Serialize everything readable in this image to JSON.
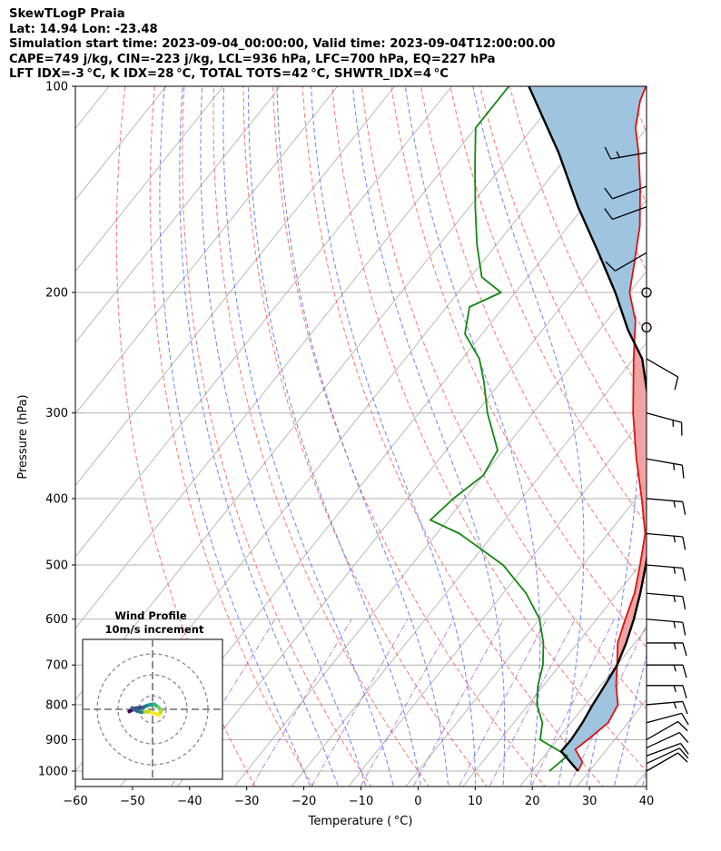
{
  "header": {
    "title": "SkewTLogP Praia",
    "location": "Lat: 14.94   Lon: -23.48",
    "times": "Simulation start time: 2023-09-04_00:00:00, Valid time: 2023-09-04T12:00:00.00",
    "params": "CAPE=749 j/kg, CIN=-223 j/kg, LCL=936 hPa, LFC=700 hPa, EQ=227 hPa",
    "indices": "LFT IDX=-3 °C, K IDX=28 °C, TOTAL TOTS=42 °C, SHWTR_IDX=4 °C"
  },
  "chart_data": {
    "type": "line",
    "subtype": "skew-t log-p",
    "xlabel": "Temperature ( °C)",
    "ylabel": "Pressure (hPa)",
    "xlim": [
      -60,
      40
    ],
    "ylim": [
      1050,
      100
    ],
    "x_ticks": [
      -60,
      -50,
      -40,
      -30,
      -20,
      -10,
      0,
      10,
      20,
      30,
      40
    ],
    "x_tick_labels": [
      "−60",
      "−50",
      "−40",
      "−30",
      "−20",
      "−10",
      "0",
      "10",
      "20",
      "30",
      "40"
    ],
    "y_ticks": [
      1000,
      900,
      800,
      700,
      600,
      500,
      400,
      300,
      200,
      100
    ],
    "y_tick_labels": [
      "1000",
      "900",
      "800",
      "700",
      "600",
      "500",
      "400",
      "300",
      "200",
      "100"
    ],
    "series": [
      {
        "name": "Temperature",
        "color": "#e01010",
        "points": [
          [
            1000,
            28
          ],
          [
            970,
            27.5
          ],
          [
            930,
            24.5
          ],
          [
            900,
            25.3
          ],
          [
            850,
            26.5
          ],
          [
            800,
            25.7
          ],
          [
            750,
            22.7
          ],
          [
            700,
            20
          ],
          [
            650,
            17
          ],
          [
            600,
            15
          ],
          [
            550,
            13
          ],
          [
            500,
            10
          ],
          [
            450,
            6.5
          ],
          [
            400,
            1
          ],
          [
            350,
            -5.5
          ],
          [
            300,
            -12.5
          ],
          [
            250,
            -20
          ],
          [
            220,
            -25
          ],
          [
            200,
            -30
          ],
          [
            180,
            -33.5
          ],
          [
            160,
            -37.5
          ],
          [
            140,
            -43
          ],
          [
            125,
            -48
          ],
          [
            115,
            -52
          ],
          [
            105,
            -55
          ],
          [
            100,
            -56
          ]
        ]
      },
      {
        "name": "Dewpoint",
        "color": "#118811",
        "points": [
          [
            1000,
            23
          ],
          [
            950,
            24
          ],
          [
            900,
            17
          ],
          [
            850,
            15
          ],
          [
            800,
            11.5
          ],
          [
            750,
            9
          ],
          [
            700,
            7
          ],
          [
            650,
            4
          ],
          [
            600,
            0
          ],
          [
            550,
            -6
          ],
          [
            500,
            -14
          ],
          [
            450,
            -26
          ],
          [
            430,
            -33
          ],
          [
            400,
            -32
          ],
          [
            370,
            -30
          ],
          [
            340,
            -31
          ],
          [
            300,
            -38
          ],
          [
            270,
            -43
          ],
          [
            250,
            -47
          ],
          [
            230,
            -53
          ],
          [
            210,
            -56
          ],
          [
            200,
            -52.5
          ],
          [
            190,
            -58
          ],
          [
            170,
            -63.5
          ],
          [
            150,
            -69
          ],
          [
            130,
            -75
          ],
          [
            115,
            -80
          ],
          [
            100,
            -80
          ]
        ]
      },
      {
        "name": "Parcel",
        "color": "#000000",
        "points": [
          [
            1000,
            28
          ],
          [
            960,
            24.5
          ],
          [
            936,
            22.3
          ],
          [
            900,
            22.4
          ],
          [
            850,
            22
          ],
          [
            800,
            21.3
          ],
          [
            750,
            20.7
          ],
          [
            700,
            20
          ],
          [
            650,
            18.5
          ],
          [
            600,
            16.5
          ],
          [
            550,
            14
          ],
          [
            500,
            11
          ],
          [
            450,
            7.5
          ],
          [
            400,
            3
          ],
          [
            350,
            -2.5
          ],
          [
            300,
            -9.5
          ],
          [
            250,
            -18.5
          ],
          [
            227,
            -25
          ],
          [
            200,
            -32.5
          ],
          [
            175,
            -41
          ],
          [
            150,
            -51
          ],
          [
            125,
            -62
          ],
          [
            100,
            -76.5
          ]
        ]
      }
    ],
    "cape_color": "#f0a3a3",
    "cin_color": "#9ec4e0",
    "winds": [
      {
        "p": 1000,
        "dir": 60,
        "spd": 10
      },
      {
        "p": 975,
        "dir": 65,
        "spd": 10
      },
      {
        "p": 950,
        "dir": 70,
        "spd": 10
      },
      {
        "p": 925,
        "dir": 65,
        "spd": 10
      },
      {
        "p": 900,
        "dir": 60,
        "spd": 10
      },
      {
        "p": 850,
        "dir": 75,
        "spd": 10
      },
      {
        "p": 800,
        "dir": 85,
        "spd": 15
      },
      {
        "p": 750,
        "dir": 90,
        "spd": 15
      },
      {
        "p": 700,
        "dir": 90,
        "spd": 15
      },
      {
        "p": 650,
        "dir": 90,
        "spd": 15
      },
      {
        "p": 600,
        "dir": 95,
        "spd": 15
      },
      {
        "p": 550,
        "dir": 95,
        "spd": 15
      },
      {
        "p": 500,
        "dir": 95,
        "spd": 15
      },
      {
        "p": 450,
        "dir": 95,
        "spd": 15
      },
      {
        "p": 400,
        "dir": 95,
        "spd": 15
      },
      {
        "p": 350,
        "dir": 100,
        "spd": 15
      },
      {
        "p": 300,
        "dir": 105,
        "spd": 15
      },
      {
        "p": 250,
        "dir": 120,
        "spd": 10
      },
      {
        "p": 225,
        "dir": 0,
        "spd": 0
      },
      {
        "p": 200,
        "dir": 0,
        "spd": 0
      },
      {
        "p": 175,
        "dir": 240,
        "spd": 10
      },
      {
        "p": 150,
        "dir": 250,
        "spd": 10
      },
      {
        "p": 140,
        "dir": 250,
        "spd": 10
      },
      {
        "p": 125,
        "dir": 260,
        "spd": 15
      }
    ],
    "hodograph": {
      "title": "Wind Profile",
      "subtitle": "10m/s increment",
      "points": [
        [
          -3.2,
          -0.3
        ],
        [
          -2.5,
          0.1
        ],
        [
          -2.0,
          0.2
        ],
        [
          -1.2,
          0.3
        ],
        [
          -0.8,
          0.5
        ],
        [
          -0.4,
          0.6
        ],
        [
          0.2,
          0.7
        ],
        [
          0.8,
          0.3
        ],
        [
          1.2,
          -0.2
        ],
        [
          0.9,
          -0.8
        ],
        [
          0.4,
          -0.6
        ],
        [
          -0.6,
          -0.3
        ],
        [
          -1.5,
          -0.4
        ],
        [
          -2.2,
          -0.2
        ],
        [
          -2.8,
          0.2
        ]
      ]
    }
  }
}
